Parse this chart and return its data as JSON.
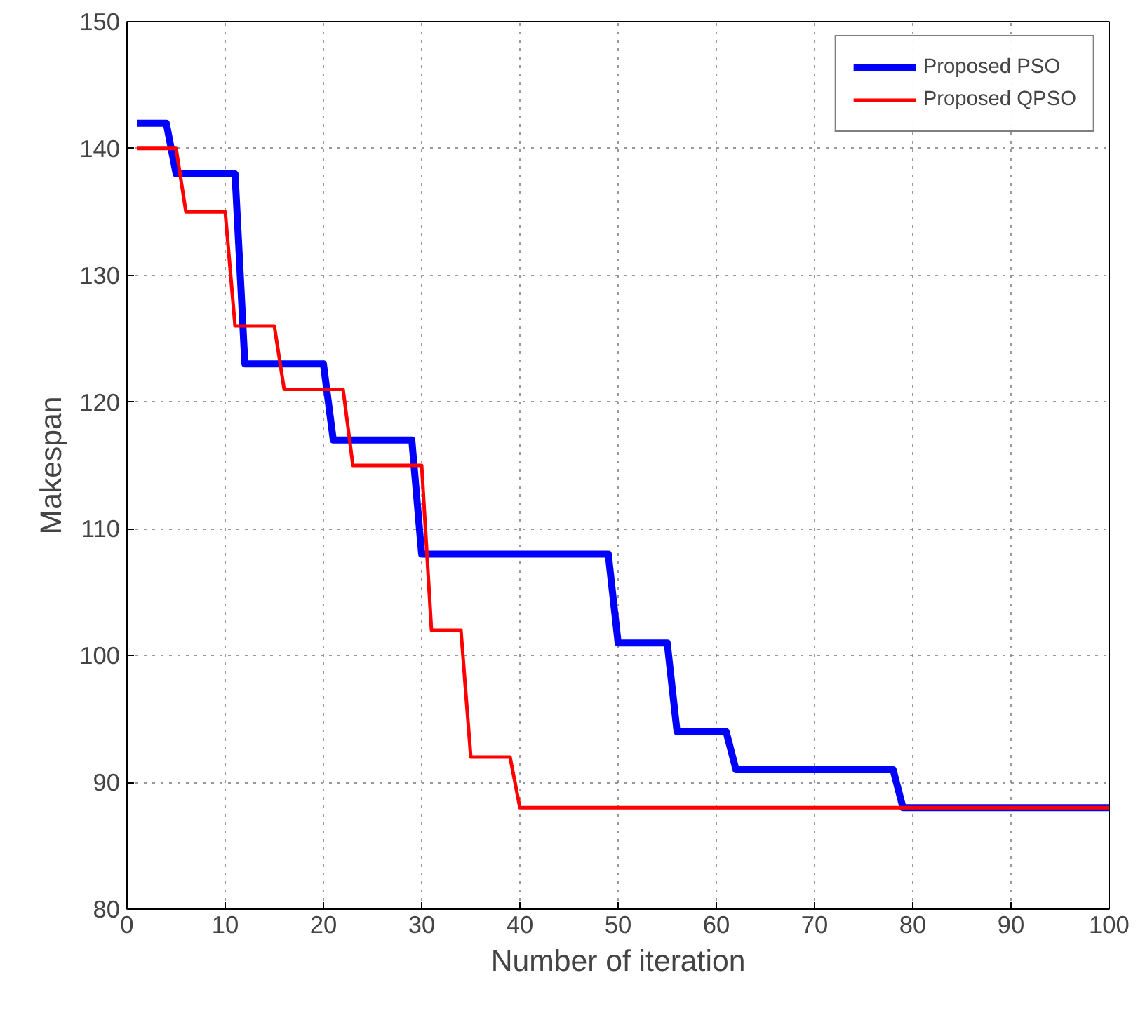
{
  "chart_data": {
    "type": "line",
    "xlabel": "Number of iteration",
    "ylabel": "Makespan",
    "xlim": [
      0,
      100
    ],
    "xticks": [
      0,
      10,
      20,
      30,
      40,
      50,
      60,
      70,
      80,
      90,
      100
    ],
    "ylim": [
      80,
      150
    ],
    "yticks": [
      80,
      90,
      100,
      110,
      120,
      130,
      140,
      150
    ],
    "grid": true,
    "legend": "top right",
    "line_style": "solid",
    "marker": "none",
    "series": [
      {
        "name": "Proposed PSO",
        "color": "#0000ff",
        "x": [
          1,
          4,
          5,
          11,
          12,
          20,
          21,
          29,
          30,
          49,
          50,
          55,
          56,
          61,
          62,
          78,
          79,
          100
        ],
        "values": [
          142,
          142,
          138,
          138,
          123,
          123,
          117,
          117,
          108,
          108,
          101,
          101,
          94,
          94,
          91,
          91,
          88,
          88
        ]
      },
      {
        "name": "Proposed QPSO",
        "color": "#ff0000",
        "x": [
          1,
          5,
          6,
          10,
          11,
          15,
          16,
          22,
          23,
          30,
          31,
          34,
          35,
          39,
          40,
          100
        ],
        "values": [
          140,
          140,
          135,
          135,
          126,
          126,
          121,
          121,
          115,
          115,
          102,
          102,
          92,
          92,
          88,
          88
        ]
      }
    ]
  }
}
